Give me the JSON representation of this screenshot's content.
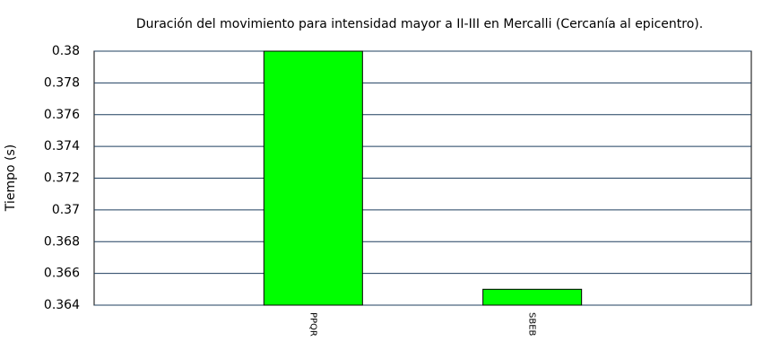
{
  "chart_data": {
    "type": "bar",
    "title": "Duración del movimiento para intensidad mayor a II-III en Mercalli (Cercanía al epicentro).",
    "y_label": "Tiempo (s)",
    "categories": [
      "PPQR",
      "SBEB"
    ],
    "values": [
      0.38,
      0.365
    ],
    "color": "#00ff00",
    "ylim": [
      0.364,
      0.38
    ],
    "yticks": [
      0.364,
      0.366,
      0.368,
      0.37,
      0.372,
      0.374,
      0.376,
      0.378,
      0.38
    ],
    "grid": true
  }
}
